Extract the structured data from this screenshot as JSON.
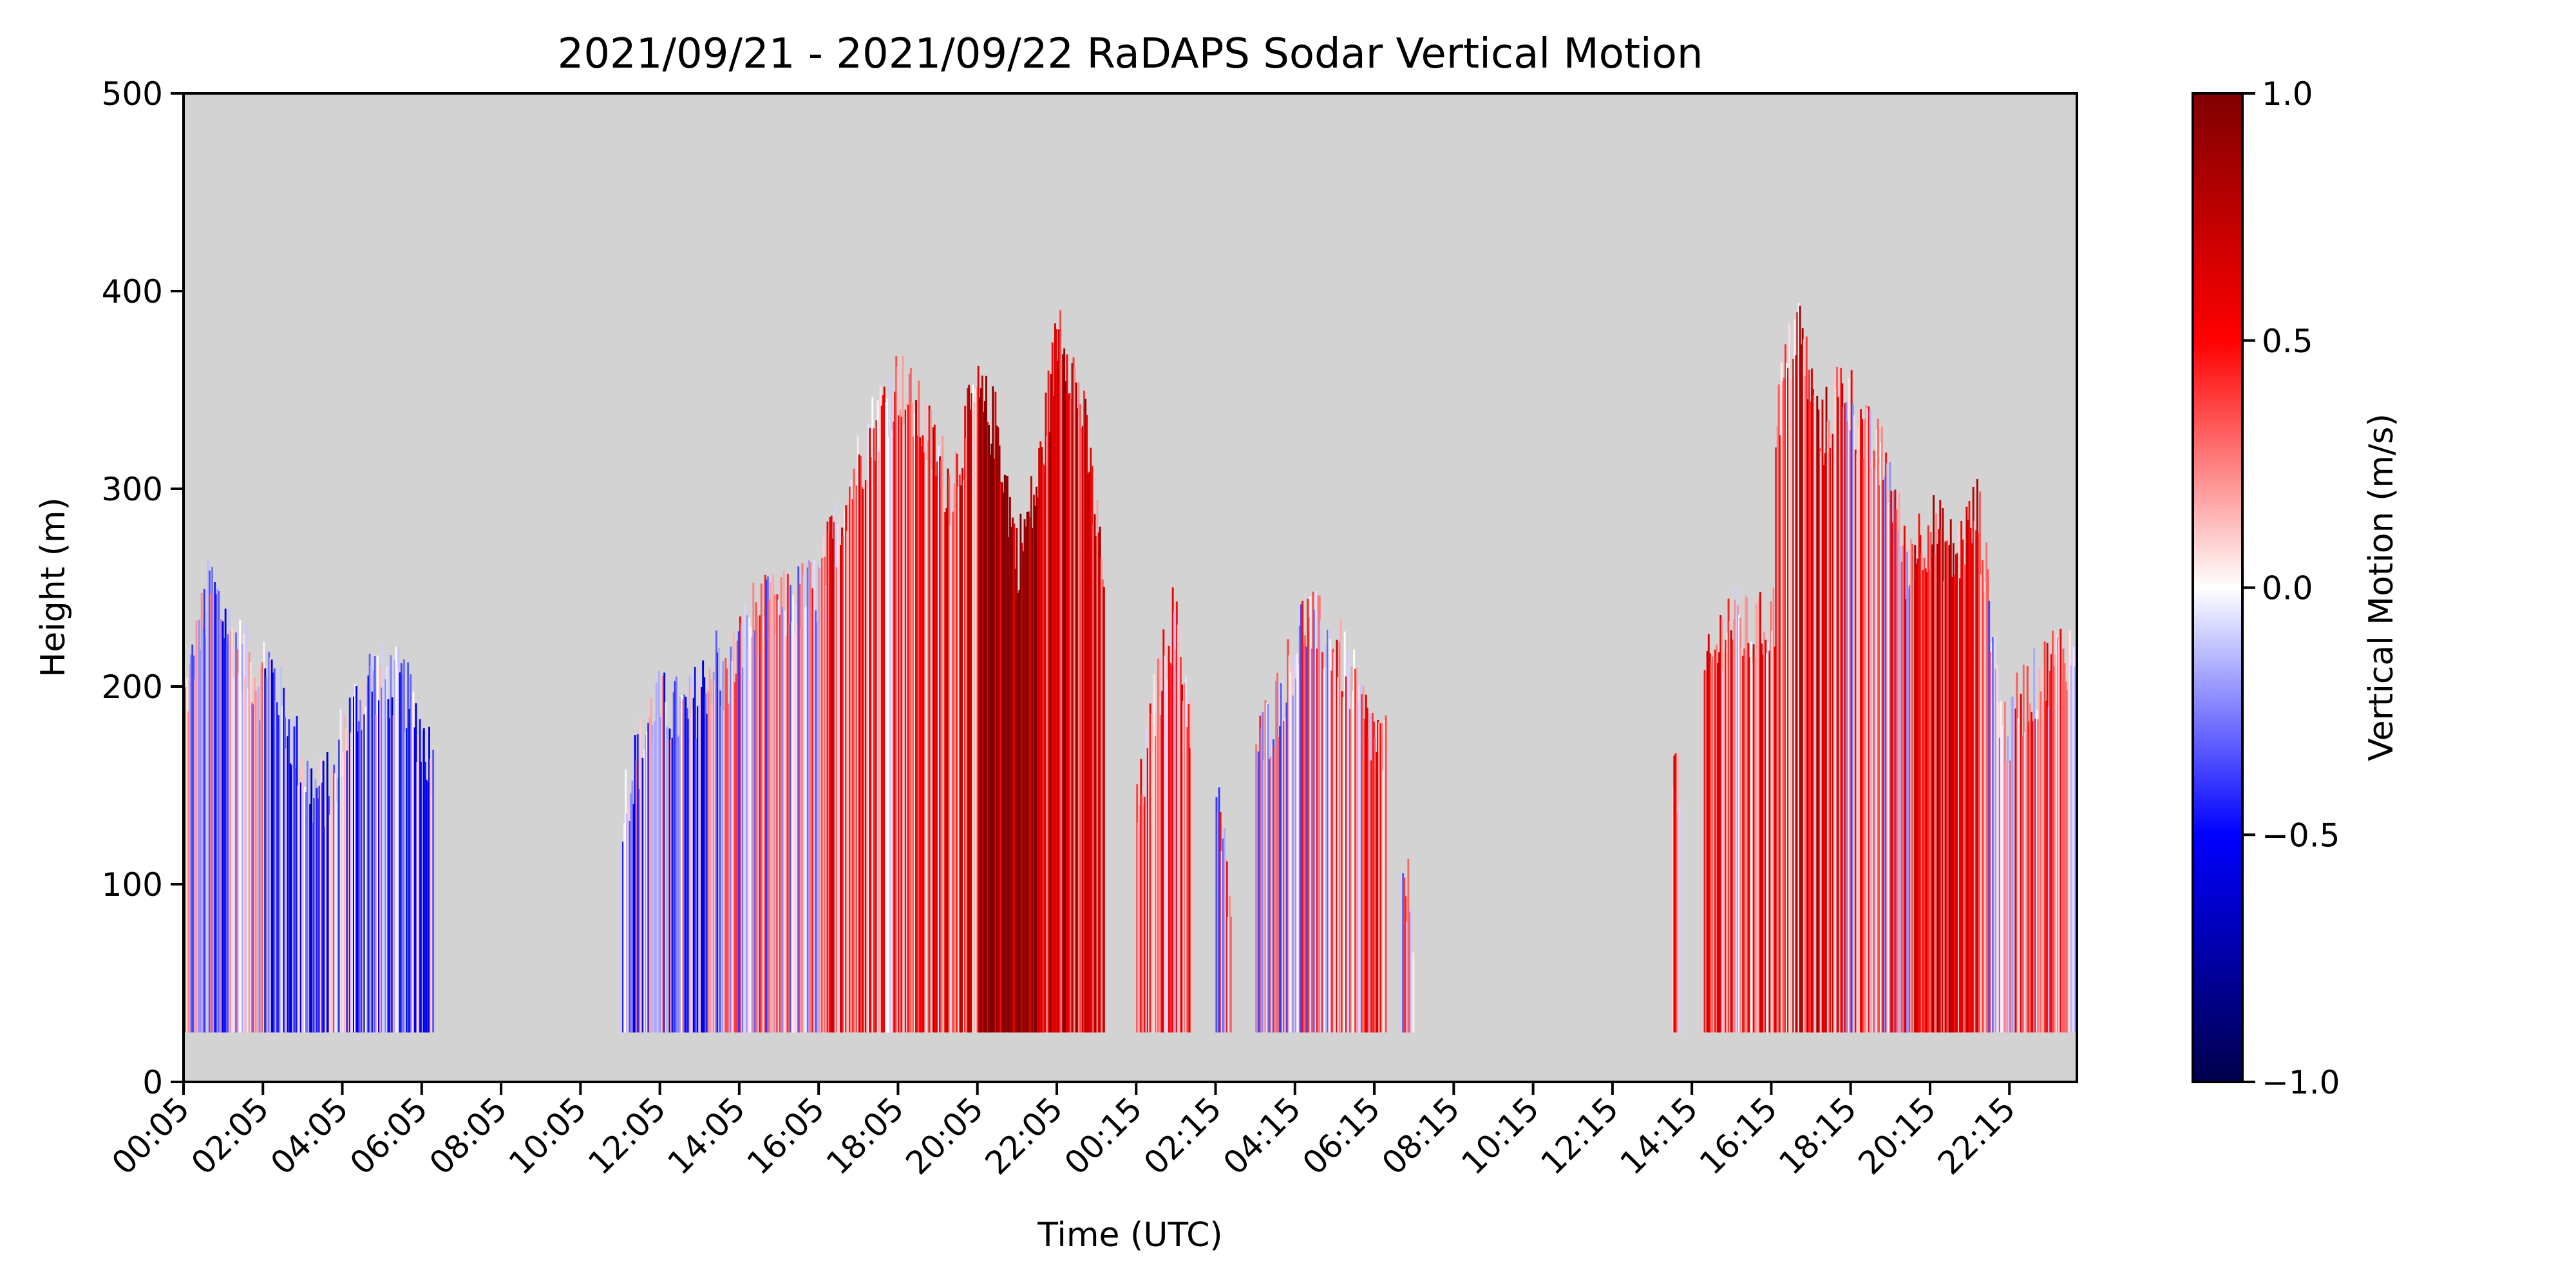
{
  "chart_data": {
    "type": "heatmap",
    "title": "2021/09/21 - 2021/09/22 RaDAPS Sodar Vertical Motion",
    "xlabel": "Time (UTC)",
    "ylabel": "Height (m)",
    "x_unit": "hours since 2021/09/21 00:05 UTC",
    "xlim": [
      0,
      47.7
    ],
    "ylim": [
      0,
      500
    ],
    "x_ticks": [
      {
        "value": 0,
        "label": "00:05"
      },
      {
        "value": 2,
        "label": "02:05"
      },
      {
        "value": 4,
        "label": "04:05"
      },
      {
        "value": 6,
        "label": "06:05"
      },
      {
        "value": 8,
        "label": "08:05"
      },
      {
        "value": 10,
        "label": "10:05"
      },
      {
        "value": 12,
        "label": "12:05"
      },
      {
        "value": 14,
        "label": "14:05"
      },
      {
        "value": 16,
        "label": "16:05"
      },
      {
        "value": 18,
        "label": "18:05"
      },
      {
        "value": 20,
        "label": "20:05"
      },
      {
        "value": 22,
        "label": "22:05"
      },
      {
        "value": 24,
        "label": "00:15"
      },
      {
        "value": 26,
        "label": "02:15"
      },
      {
        "value": 28,
        "label": "04:15"
      },
      {
        "value": 30,
        "label": "06:15"
      },
      {
        "value": 32,
        "label": "08:15"
      },
      {
        "value": 34,
        "label": "10:15"
      },
      {
        "value": 36,
        "label": "12:15"
      },
      {
        "value": 38,
        "label": "14:15"
      },
      {
        "value": 40,
        "label": "16:15"
      },
      {
        "value": 42,
        "label": "18:15"
      },
      {
        "value": 44,
        "label": "20:15"
      },
      {
        "value": 46,
        "label": "22:15"
      }
    ],
    "y_ticks": [
      0,
      100,
      200,
      300,
      400,
      500
    ],
    "colorbar": {
      "label": "Vertical Motion (m/s)",
      "range": [
        -1.0,
        1.0
      ],
      "ticks": [
        "1.0",
        "0.5",
        "0.0",
        "−0.5",
        "−1.0"
      ],
      "colormap": "seismic",
      "stops": [
        "#00004c",
        "#0000ff",
        "#ffffff",
        "#ff0000",
        "#800000"
      ]
    },
    "colors": {
      "no_data": "#d3d3d3",
      "frame": "#000000"
    },
    "bottom_gate_m": 25,
    "segments": [
      {
        "x": [
          0.0,
          2.0
        ],
        "top": [
          190,
          250,
          220,
          200
        ],
        "mean": -0.1
      },
      {
        "x": [
          2.0,
          3.9
        ],
        "top": [
          220,
          180,
          145,
          150
        ],
        "mean": -0.3
      },
      {
        "x": [
          3.9,
          6.3
        ],
        "top": [
          170,
          205,
          200,
          160
        ],
        "mean": -0.25
      },
      {
        "x": [
          11.05,
          13.5
        ],
        "top": [
          140,
          190,
          185,
          215
        ],
        "mean": -0.15
      },
      {
        "x": [
          13.5,
          16.0
        ],
        "top": [
          195,
          235,
          240,
          250
        ],
        "mean": 0.05
      },
      {
        "x": [
          16.0,
          18.0
        ],
        "top": [
          250,
          295,
          330,
          355
        ],
        "mean": 0.35
      },
      {
        "x": [
          18.0,
          20.0
        ],
        "top": [
          355,
          330,
          300,
          350
        ],
        "mean": 0.4
      },
      {
        "x": [
          20.0,
          21.5
        ],
        "top": [
          345,
          330,
          265,
          300
        ],
        "mean": 0.9
      },
      {
        "x": [
          21.5,
          23.2
        ],
        "top": [
          300,
          385,
          340,
          250
        ],
        "mean": 0.6
      },
      {
        "x": [
          24.0,
          25.4
        ],
        "top": [
          130,
          190,
          235,
          180
        ],
        "mean": 0.3
      },
      {
        "x": [
          26.0,
          26.4
        ],
        "top": [
          140,
          130,
          100,
          90
        ],
        "mean": 0.05
      },
      {
        "x": [
          27.0,
          28.9
        ],
        "top": [
          165,
          195,
          235,
          220
        ],
        "mean": 0.05
      },
      {
        "x": [
          28.9,
          30.3
        ],
        "top": [
          225,
          205,
          180,
          165
        ],
        "mean": 0.3
      },
      {
        "x": [
          30.7,
          31.0
        ],
        "top": [
          95,
          100,
          90,
          80
        ],
        "mean": 0.1
      },
      {
        "x": [
          37.5,
          37.7
        ],
        "top": [
          160,
          155,
          150,
          140
        ],
        "mean": 0.3
      },
      {
        "x": [
          38.3,
          40.1
        ],
        "top": [
          200,
          235,
          225,
          235
        ],
        "mean": 0.35
      },
      {
        "x": [
          40.1,
          41.8
        ],
        "top": [
          335,
          385,
          325,
          355
        ],
        "mean": 0.45
      },
      {
        "x": [
          41.8,
          43.5
        ],
        "top": [
          355,
          325,
          310,
          250
        ],
        "mean": 0.2
      },
      {
        "x": [
          43.5,
          45.2
        ],
        "top": [
          270,
          280,
          265,
          290
        ],
        "mean": 0.5
      },
      {
        "x": [
          45.2,
          46.1
        ],
        "top": [
          290,
          240,
          180,
          175
        ],
        "mean": 0.05
      },
      {
        "x": [
          46.1,
          47.7
        ],
        "top": [
          190,
          200,
          215,
          220
        ],
        "mean": 0.2
      }
    ]
  }
}
